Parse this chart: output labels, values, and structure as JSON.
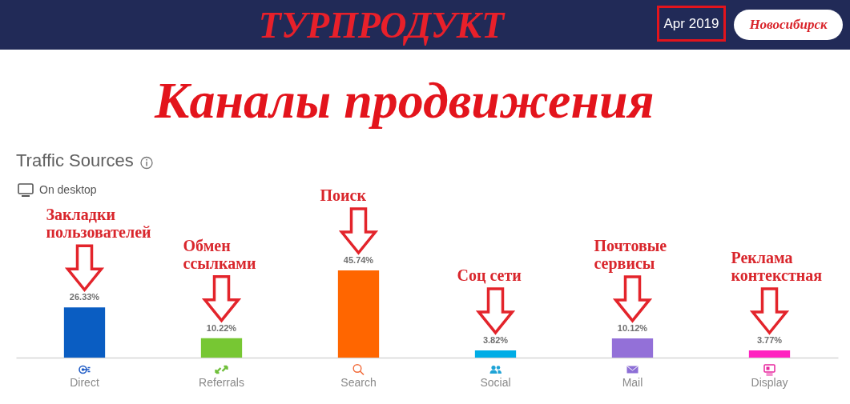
{
  "chart_data": {
    "type": "bar",
    "title": "Каналы продвижения",
    "subtitle": "Traffic Sources",
    "categories": [
      "Direct",
      "Referrals",
      "Search",
      "Social",
      "Mail",
      "Display"
    ],
    "values": [
      26.33,
      10.22,
      45.74,
      3.82,
      10.12,
      3.77
    ],
    "colors": [
      "#0a5dc2",
      "#77c733",
      "#ff6600",
      "#00ade6",
      "#9370d8",
      "#ff21c0"
    ],
    "value_labels": [
      "26.33%",
      "10.22%",
      "45.74%",
      "3.82%",
      "10.12%",
      "3.77%"
    ],
    "annotations": [
      "ТУРПРОДУКТ",
      "Apr 2019",
      "Новосибирск",
      "On desktop",
      "Закладки пользователей",
      "Обмен ссылками",
      "Поиск",
      "Соц сети",
      "Почтовые сервисы",
      "Реклама контекстная"
    ]
  }
}
